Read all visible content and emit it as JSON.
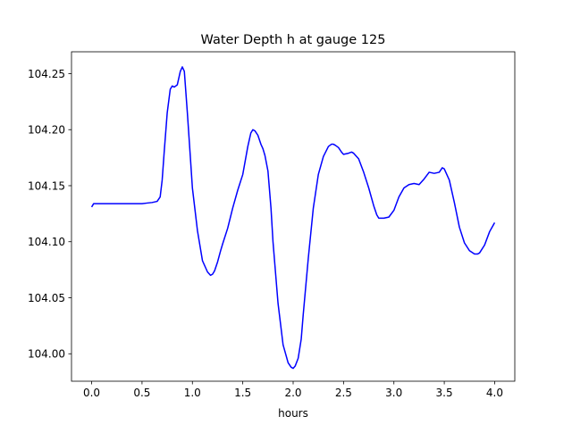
{
  "chart_data": {
    "type": "line",
    "title": "Water Depth h at gauge 125",
    "xlabel": "hours",
    "ylabel": "",
    "xlim": [
      -0.2,
      4.2
    ],
    "ylim": [
      103.9755,
      104.2695
    ],
    "xticks": [
      0.0,
      0.5,
      1.0,
      1.5,
      2.0,
      2.5,
      3.0,
      3.5,
      4.0
    ],
    "xtick_labels": [
      "0.0",
      "0.5",
      "1.0",
      "1.5",
      "2.0",
      "2.5",
      "3.0",
      "3.5",
      "4.0"
    ],
    "yticks": [
      104.0,
      104.05,
      104.1,
      104.15,
      104.2,
      104.25
    ],
    "ytick_labels": [
      "104.00",
      "104.05",
      "104.10",
      "104.15",
      "104.20",
      "104.25"
    ],
    "grid": false,
    "series": [
      {
        "color": "#0000ff",
        "x": [
          0.0,
          0.02,
          0.1,
          0.2,
          0.3,
          0.4,
          0.5,
          0.55,
          0.6,
          0.65,
          0.68,
          0.7,
          0.72,
          0.75,
          0.78,
          0.8,
          0.82,
          0.85,
          0.88,
          0.9,
          0.92,
          0.95,
          0.98,
          1.0,
          1.05,
          1.1,
          1.15,
          1.18,
          1.2,
          1.22,
          1.25,
          1.28,
          1.3,
          1.35,
          1.4,
          1.45,
          1.5,
          1.55,
          1.58,
          1.6,
          1.62,
          1.65,
          1.68,
          1.7,
          1.72,
          1.75,
          1.78,
          1.8,
          1.85,
          1.9,
          1.95,
          1.98,
          2.0,
          2.02,
          2.05,
          2.08,
          2.1,
          2.15,
          2.2,
          2.25,
          2.3,
          2.35,
          2.38,
          2.4,
          2.42,
          2.45,
          2.48,
          2.5,
          2.55,
          2.58,
          2.6,
          2.65,
          2.7,
          2.75,
          2.8,
          2.83,
          2.85,
          2.88,
          2.9,
          2.95,
          3.0,
          3.05,
          3.1,
          3.15,
          3.2,
          3.25,
          3.3,
          3.35,
          3.4,
          3.45,
          3.48,
          3.5,
          3.55,
          3.6,
          3.65,
          3.7,
          3.75,
          3.8,
          3.83,
          3.85,
          3.9,
          3.95,
          4.0
        ],
        "y": [
          104.131,
          104.134,
          104.134,
          104.134,
          104.134,
          104.134,
          104.134,
          104.1345,
          104.135,
          104.136,
          104.14,
          104.155,
          104.18,
          104.215,
          104.236,
          104.239,
          104.238,
          104.24,
          104.252,
          104.256,
          104.252,
          104.215,
          104.175,
          104.148,
          104.11,
          104.083,
          104.073,
          104.07,
          104.071,
          104.074,
          104.082,
          104.092,
          104.098,
          104.112,
          104.13,
          104.146,
          104.16,
          104.185,
          104.197,
          104.2,
          104.199,
          104.195,
          104.187,
          104.183,
          104.177,
          104.163,
          104.13,
          104.1,
          104.045,
          104.008,
          103.992,
          103.988,
          103.987,
          103.989,
          103.996,
          104.013,
          104.035,
          104.085,
          104.13,
          104.16,
          104.176,
          104.185,
          104.187,
          104.187,
          104.186,
          104.184,
          104.18,
          104.178,
          104.179,
          104.18,
          104.179,
          104.174,
          104.162,
          104.148,
          104.132,
          104.124,
          104.121,
          104.121,
          104.121,
          104.122,
          104.128,
          104.14,
          104.148,
          104.151,
          104.152,
          104.151,
          104.156,
          104.162,
          104.161,
          104.162,
          104.166,
          104.165,
          104.155,
          104.135,
          104.113,
          104.099,
          104.092,
          104.089,
          104.089,
          104.09,
          104.097,
          104.109,
          104.117
        ]
      }
    ]
  }
}
